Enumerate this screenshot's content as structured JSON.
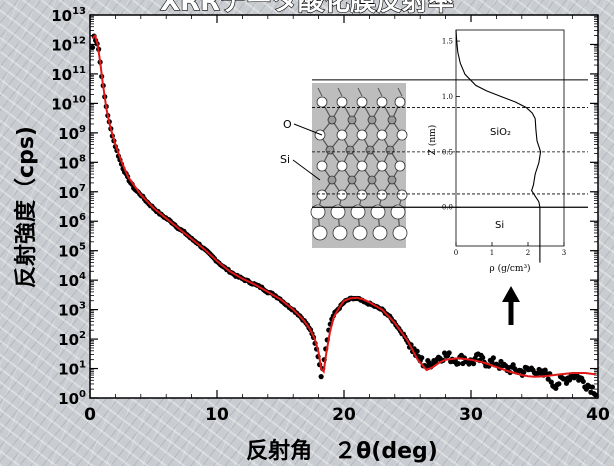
{
  "chart_data": {
    "type": "scatter",
    "title": "XRRデータ酸化膜反射率",
    "xlabel": "反射角　２θ(deg)",
    "ylabel": "反射強度（cps)",
    "xlim": [
      0,
      40
    ],
    "ylim_log10": [
      0,
      13
    ],
    "y_scale": "log",
    "x_ticks": [
      "0",
      "10",
      "20",
      "30",
      "40"
    ],
    "y_ticks": [
      {
        "base": "10",
        "exp": "0"
      },
      {
        "base": "10",
        "exp": "1"
      },
      {
        "base": "10",
        "exp": "2"
      },
      {
        "base": "10",
        "exp": "3"
      },
      {
        "base": "10",
        "exp": "4"
      },
      {
        "base": "10",
        "exp": "5"
      },
      {
        "base": "10",
        "exp": "6"
      },
      {
        "base": "10",
        "exp": "7"
      },
      {
        "base": "10",
        "exp": "8"
      },
      {
        "base": "10",
        "exp": "9"
      },
      {
        "base": "10",
        "exp": "10"
      },
      {
        "base": "10",
        "exp": "11"
      },
      {
        "base": "10",
        "exp": "12"
      },
      {
        "base": "10",
        "exp": "13"
      }
    ],
    "series": [
      {
        "kind": "measured",
        "color": "#000000",
        "x": [
          0.2,
          0.3,
          0.4,
          0.5,
          0.6,
          0.7,
          0.8,
          0.9,
          1.0,
          1.2,
          1.4,
          1.6,
          1.8,
          2.0,
          2.3,
          2.6,
          3.0,
          3.5,
          4.0,
          4.5,
          5.0,
          5.5,
          6.0,
          6.5,
          7.0,
          7.5,
          8.0,
          8.5,
          9.0,
          9.5,
          10.0,
          10.5,
          11.0,
          11.5,
          12.0,
          12.5,
          13.0,
          13.5,
          14.0,
          14.5,
          15.0,
          15.5,
          16.0,
          16.5,
          17.0,
          17.3,
          17.6,
          17.8,
          18.0,
          18.2,
          18.4,
          18.6,
          18.8,
          19.0,
          19.3,
          19.6,
          20.0,
          20.4,
          20.8,
          21.2,
          21.6,
          22.0,
          22.5,
          23.0,
          23.5,
          24.0,
          24.5,
          25.0,
          25.5,
          26.0,
          26.5,
          27.0,
          27.5,
          28.0,
          28.5,
          29.0,
          29.5,
          30.0,
          30.5,
          31.0,
          31.5,
          32.0,
          32.5,
          33.0,
          33.5,
          34.0,
          34.5,
          35.0,
          35.5,
          36.0,
          36.5,
          37.0,
          37.5,
          38.0,
          38.5,
          39.0,
          39.5,
          39.8
        ],
        "log10_y": [
          11.9,
          12.3,
          12.2,
          12.1,
          12.0,
          11.8,
          11.4,
          11.0,
          10.7,
          10.1,
          9.6,
          9.2,
          8.85,
          8.55,
          8.15,
          7.8,
          7.45,
          7.1,
          6.9,
          6.65,
          6.45,
          6.25,
          6.1,
          5.95,
          5.75,
          5.6,
          5.4,
          5.25,
          5.05,
          4.85,
          4.65,
          4.45,
          4.3,
          4.15,
          4.05,
          3.95,
          3.85,
          3.75,
          3.6,
          3.5,
          3.35,
          3.15,
          3.0,
          2.8,
          2.55,
          2.35,
          2.05,
          1.75,
          1.35,
          0.75,
          1.2,
          1.8,
          2.3,
          2.65,
          2.9,
          3.05,
          3.25,
          3.35,
          3.38,
          3.35,
          3.25,
          3.2,
          3.1,
          3.0,
          2.8,
          2.55,
          2.25,
          1.95,
          1.6,
          1.3,
          1.1,
          1.25,
          1.4,
          1.45,
          1.35,
          1.3,
          1.35,
          1.2,
          1.35,
          1.25,
          1.2,
          1.2,
          1.05,
          1.0,
          0.95,
          0.9,
          0.95,
          1.0,
          0.75,
          0.85,
          0.45,
          0.55,
          0.65,
          0.8,
          0.7,
          0.5,
          0.35,
          0.25
        ]
      },
      {
        "kind": "fit",
        "color": "#e01818",
        "x": [
          0.2,
          0.4,
          0.6,
          0.8,
          1.0,
          1.3,
          1.6,
          2.0,
          2.5,
          3.0,
          4.0,
          5.0,
          6.0,
          7.0,
          8.0,
          9.0,
          10.0,
          11.0,
          12.0,
          13.0,
          14.0,
          15.0,
          16.0,
          16.8,
          17.3,
          17.7,
          18.0,
          18.2,
          18.4,
          18.6,
          18.9,
          19.2,
          19.6,
          20.0,
          20.5,
          21.0,
          21.5,
          22.0,
          23.0,
          24.0,
          25.0,
          25.8,
          26.5,
          27.0,
          27.5,
          28.0,
          29.0,
          30.0,
          31.0,
          32.0,
          33.0,
          34.0,
          34.5,
          35.0,
          35.5,
          36.0,
          37.0,
          38.0,
          39.0,
          39.8
        ],
        "log10_y": [
          12.2,
          12.3,
          12.0,
          11.4,
          10.7,
          9.8,
          9.2,
          8.6,
          8.0,
          7.5,
          6.9,
          6.45,
          6.1,
          5.75,
          5.4,
          5.05,
          4.65,
          4.3,
          4.05,
          3.85,
          3.6,
          3.35,
          3.0,
          2.65,
          2.35,
          2.0,
          1.55,
          1.0,
          0.9,
          1.5,
          2.25,
          2.75,
          3.05,
          3.3,
          3.38,
          3.4,
          3.35,
          3.25,
          3.0,
          2.55,
          1.95,
          1.3,
          0.95,
          1.05,
          1.2,
          1.3,
          1.35,
          1.3,
          1.2,
          1.05,
          0.9,
          0.78,
          0.74,
          0.72,
          0.73,
          0.75,
          0.8,
          0.85,
          0.85,
          0.8
        ]
      }
    ],
    "inset": {
      "atom_labels": [
        "O",
        "Si"
      ],
      "zlabel": "Z (nm)",
      "rholabel": "ρ (g/cm³)",
      "layer_labels": [
        "SiO₂",
        "Si"
      ],
      "z_ticks": [
        "0.0",
        "0.5",
        "1.0",
        "1.5"
      ],
      "rho_ticks": [
        "0",
        "1",
        "2",
        "3"
      ],
      "density_profile": {
        "z": [
          1.6,
          1.5,
          1.4,
          1.3,
          1.2,
          1.1,
          1.05,
          1.0,
          0.95,
          0.9,
          0.85,
          0.8,
          0.7,
          0.6,
          0.5,
          0.4,
          0.3,
          0.2,
          0.15,
          0.1,
          0.05,
          0.0,
          -0.1,
          -0.3,
          -0.5
        ],
        "rho": [
          0.0,
          0.02,
          0.05,
          0.12,
          0.25,
          0.55,
          0.85,
          1.25,
          1.65,
          1.95,
          2.12,
          2.2,
          2.22,
          2.25,
          2.35,
          2.3,
          2.2,
          2.15,
          2.1,
          2.2,
          2.3,
          2.33,
          2.33,
          2.33,
          2.33
        ]
      }
    }
  }
}
